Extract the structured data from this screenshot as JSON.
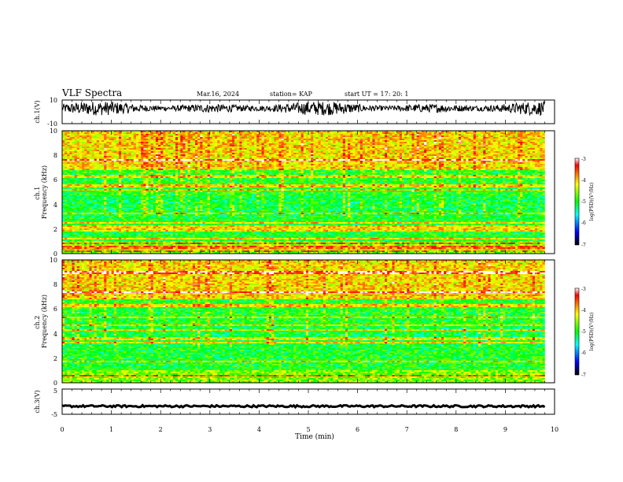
{
  "header": {
    "title": "VLF Spectra",
    "date": "Mar.16, 2024",
    "station": "station= KAP",
    "start": "start  UT =   17: 20: 1"
  },
  "chart_data": [
    {
      "type": "line",
      "panel": "ch1-waveform",
      "ylabel": "ch.1(V)",
      "ylim": [
        -10,
        10
      ],
      "yticks": [
        "10",
        "-10"
      ],
      "xlim": [
        0,
        10
      ],
      "description_values": {
        "x_end": 9.8,
        "mean": 3,
        "amplitude": 6
      }
    },
    {
      "type": "heatmap",
      "panel": "ch1-spectrogram",
      "ylabel": "ch.1\nFrequency  (kHz)",
      "ylim": [
        0,
        10
      ],
      "yticks": [
        "0",
        "2",
        "4",
        "6",
        "8",
        "10"
      ],
      "xlim": [
        0,
        9.8
      ],
      "colorbar": {
        "label": "log(PSD)(V²/Hz)",
        "range": [
          -7,
          -3
        ],
        "ticks": [
          "-3",
          "-4",
          "-5",
          "-6",
          "-7"
        ]
      },
      "bands_khz": [
        0.2,
        0.5,
        0.8,
        1.2,
        1.9,
        2.2,
        2.5,
        3.3,
        5.2,
        5.5,
        6.3,
        7.6
      ]
    },
    {
      "type": "heatmap",
      "panel": "ch2-spectrogram",
      "ylabel": "ch.2\nFrequency  (kHz)",
      "ylim": [
        0,
        10
      ],
      "yticks": [
        "0",
        "2",
        "4",
        "6",
        "8",
        "10"
      ],
      "xlim": [
        0,
        9.8
      ],
      "colorbar": {
        "label": "log(PSD)(V²/Hz)",
        "range": [
          -7,
          -3
        ],
        "ticks": [
          "-3",
          "-4",
          "-5",
          "-6",
          "-7"
        ]
      },
      "bands_khz": [
        0.6,
        1.7,
        3.3,
        3.6,
        4.3,
        4.7,
        5.3,
        6.3,
        7.4,
        9.0
      ]
    },
    {
      "type": "line",
      "panel": "ch3-waveform",
      "ylabel": "ch.3(V)",
      "ylim": [
        -5,
        5
      ],
      "yticks": [
        "5",
        "-5"
      ],
      "xlim": [
        0,
        10
      ],
      "xticks": [
        "0",
        "1",
        "2",
        "3",
        "4",
        "5",
        "6",
        "7",
        "8",
        "9",
        "10"
      ],
      "xlabel": "Time  (min)",
      "description_values": {
        "x_end": 9.8,
        "mean": -1.8,
        "amplitude": 0.4
      }
    }
  ]
}
